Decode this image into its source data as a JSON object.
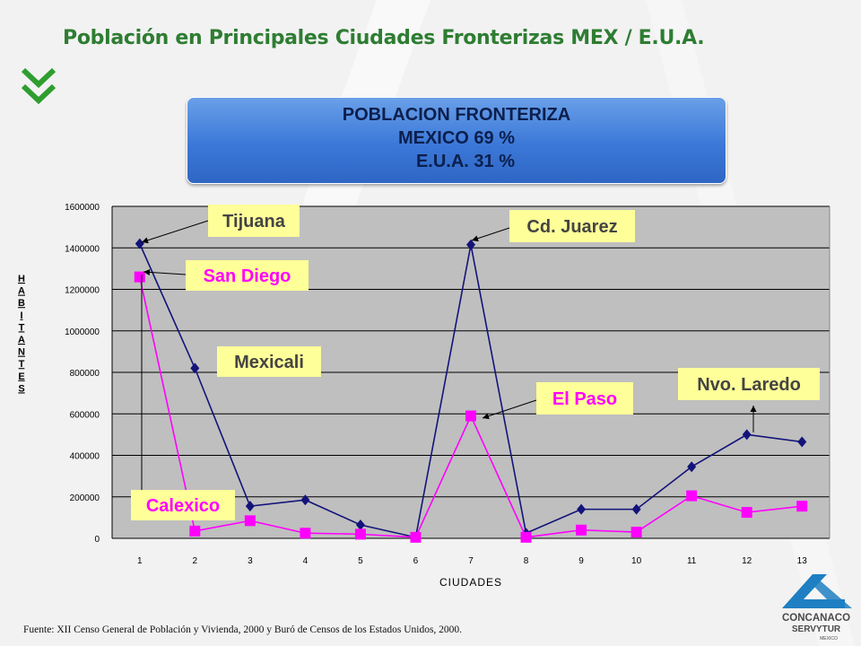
{
  "title": "Población en Principales Ciudades Fronterizas MEX / E.U.A.",
  "summary": {
    "line1": "POBLACION FRONTERIZA",
    "line2": "MEXICO  69 %",
    "line3": "E.U.A.   31 %"
  },
  "source": "Fuente: XII Censo General de Población y Vivienda, 2000 y Buró de Censos de los Estados Unidos, 2000.",
  "logo": {
    "name": "CONCANACO",
    "sub": "SERVYTUR",
    "country": "MEXICO"
  },
  "colors": {
    "mexico": "#13137a",
    "usa": "#ff00ff",
    "plot_bg": "#bfbfbf",
    "label_bg": "#ffff99",
    "title": "#2e7d32"
  },
  "chart_data": {
    "type": "line",
    "xlabel": "CIUDADES",
    "ylabel": "HABITANTES",
    "x": [
      1,
      2,
      3,
      4,
      5,
      6,
      7,
      8,
      9,
      10,
      11,
      12,
      13
    ],
    "ylim": [
      0,
      1600000
    ],
    "yticks": [
      "0",
      "200000",
      "400000",
      "600000",
      "800000",
      "1000000",
      "1200000",
      "1400000",
      "1600000"
    ],
    "grid": true,
    "series": [
      {
        "values": [
          1420000,
          820000,
          155000,
          185000,
          65000,
          5000,
          1415000,
          25000,
          140000,
          140000,
          345000,
          500000,
          465000
        ]
      },
      {
        "values": [
          1260000,
          35000,
          85000,
          25000,
          20000,
          5000,
          590000,
          5000,
          40000,
          30000,
          205000,
          125000,
          155000
        ]
      }
    ],
    "annotations": [
      {
        "text": "Tijuana",
        "color": "#444444"
      },
      {
        "text": "San Diego",
        "color": "#ff00ff"
      },
      {
        "text": "Mexicali",
        "color": "#444444"
      },
      {
        "text": "Calexico",
        "color": "#ff00ff"
      },
      {
        "text": "Cd. Juarez",
        "color": "#444444"
      },
      {
        "text": "El Paso",
        "color": "#ff00ff"
      },
      {
        "text": "Nvo. Laredo",
        "color": "#444444"
      }
    ]
  }
}
